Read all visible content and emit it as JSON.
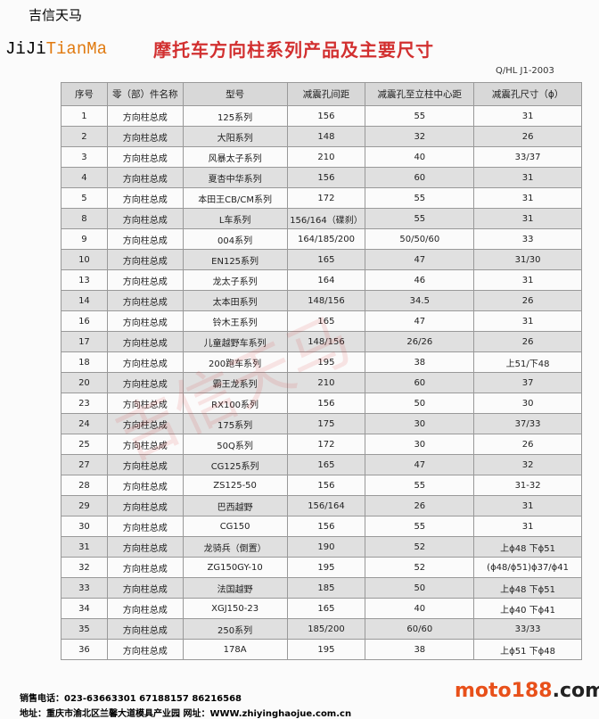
{
  "header": {
    "logo_cn": "吉信天马",
    "logo_en_a": "JiJi",
    "logo_en_b": "TianMa",
    "title": "摩托车方向柱系列产品及主要尺寸",
    "standard": "Q/HL J1-2003"
  },
  "table": {
    "columns": [
      "序号",
      "零（部）件名称",
      "型号",
      "减震孔间距",
      "减震孔至立柱中心距",
      "减震孔尺寸（ϕ）"
    ],
    "rows": [
      [
        "1",
        "方向柱总成",
        "125系列",
        "156",
        "55",
        "31"
      ],
      [
        "2",
        "方向柱总成",
        "大阳系列",
        "148",
        "32",
        "26"
      ],
      [
        "3",
        "方向柱总成",
        "风暴太子系列",
        "210",
        "40",
        "33/37"
      ],
      [
        "4",
        "方向柱总成",
        "夏杏中华系列",
        "156",
        "60",
        "31"
      ],
      [
        "5",
        "方向柱总成",
        "本田王CB/CM系列",
        "172",
        "55",
        "31"
      ],
      [
        "8",
        "方向柱总成",
        "L车系列",
        "156/164（碟刹）",
        "55",
        "31"
      ],
      [
        "9",
        "方向柱总成",
        "004系列",
        "164/185/200",
        "50/50/60",
        "33"
      ],
      [
        "10",
        "方向柱总成",
        "EN125系列",
        "165",
        "47",
        "31/30"
      ],
      [
        "13",
        "方向柱总成",
        "龙太子系列",
        "164",
        "46",
        "31"
      ],
      [
        "14",
        "方向柱总成",
        "太本田系列",
        "148/156",
        "34.5",
        "26"
      ],
      [
        "16",
        "方向柱总成",
        "铃木王系列",
        "165",
        "47",
        "31"
      ],
      [
        "17",
        "方向柱总成",
        "儿童越野车系列",
        "148/156",
        "26/26",
        "26"
      ],
      [
        "18",
        "方向柱总成",
        "200跑车系列",
        "195",
        "38",
        "上51/下48"
      ],
      [
        "20",
        "方向柱总成",
        "霸王龙系列",
        "210",
        "60",
        "37"
      ],
      [
        "23",
        "方向柱总成",
        "RX100系列",
        "156",
        "50",
        "30"
      ],
      [
        "24",
        "方向柱总成",
        "175系列",
        "175",
        "30",
        "37/33"
      ],
      [
        "25",
        "方向柱总成",
        "50Q系列",
        "172",
        "30",
        "26"
      ],
      [
        "27",
        "方向柱总成",
        "CG125系列",
        "165",
        "47",
        "32"
      ],
      [
        "28",
        "方向柱总成",
        "ZS125-50",
        "156",
        "55",
        "31-32"
      ],
      [
        "29",
        "方向柱总成",
        "巴西越野",
        "156/164",
        "26",
        "31"
      ],
      [
        "30",
        "方向柱总成",
        "CG150",
        "156",
        "55",
        "31"
      ],
      [
        "31",
        "方向柱总成",
        "龙骑兵（倒置）",
        "190",
        "52",
        "上ϕ48 下ϕ51"
      ],
      [
        "32",
        "方向柱总成",
        "ZG150GY-10",
        "195",
        "52",
        "(ϕ48/ϕ51)ϕ37/ϕ41"
      ],
      [
        "33",
        "方向柱总成",
        "法国越野",
        "185",
        "50",
        "上ϕ48 下ϕ51"
      ],
      [
        "34",
        "方向柱总成",
        "XGJ150-23",
        "165",
        "40",
        "上ϕ40 下ϕ41"
      ],
      [
        "35",
        "方向柱总成",
        "250系列",
        "185/200",
        "60/60",
        "33/33"
      ],
      [
        "36",
        "方向柱总成",
        "178A",
        "195",
        "38",
        "上ϕ51 下ϕ48"
      ]
    ]
  },
  "watermark": "吉信天马",
  "footer": {
    "phone": "销售电话：023-63663301 67188157 86216568",
    "address": "地址：重庆市渝北区兰馨大道模具产业园    网址：WWW.zhiyinghaojue.com.cn",
    "site_a": "moto188",
    "site_b": ".com"
  }
}
